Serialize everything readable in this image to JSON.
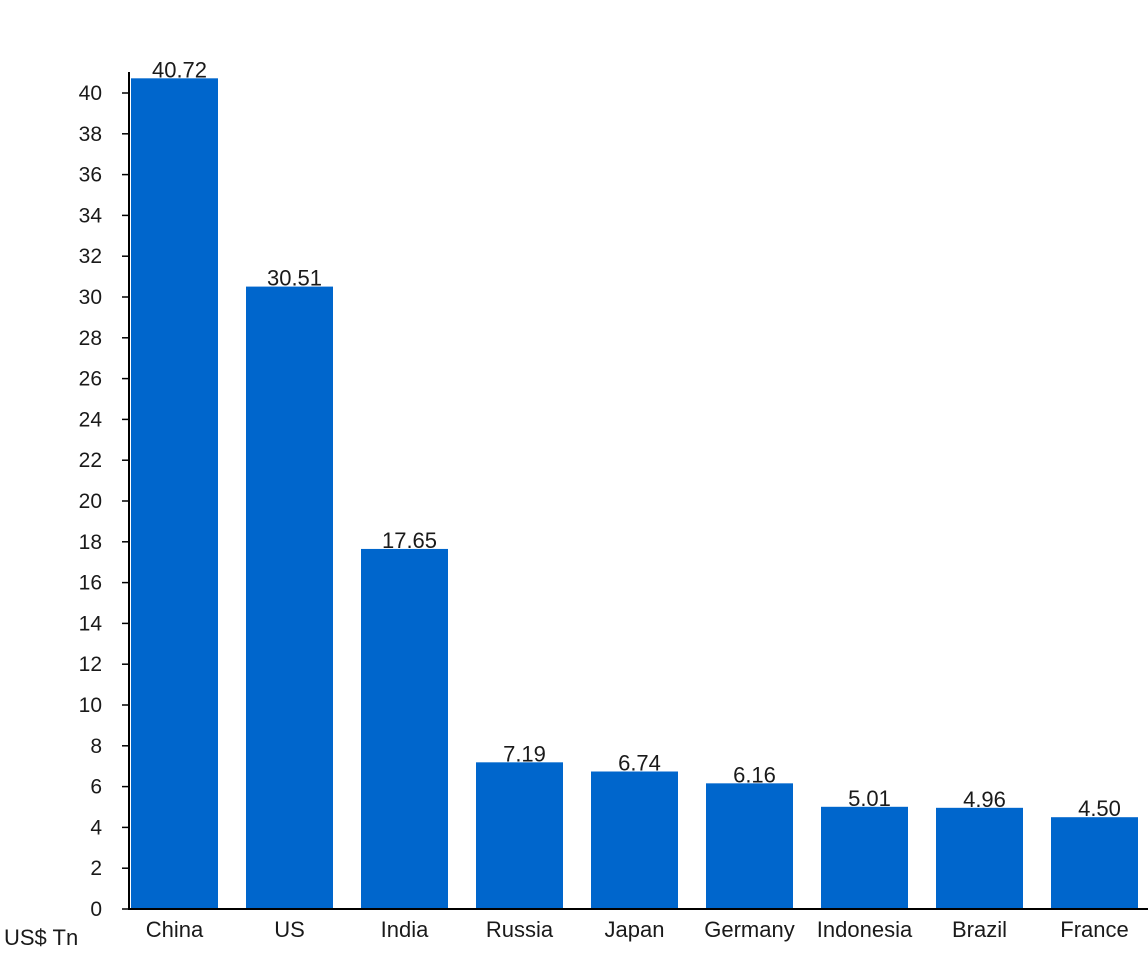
{
  "chart_data": {
    "type": "bar",
    "title": "",
    "xlabel": "",
    "ylabel": "",
    "unit_label": "US$ Tn",
    "categories": [
      "China",
      "US",
      "India",
      "Russia",
      "Japan",
      "Germany",
      "Indonesia",
      "Brazil",
      "France"
    ],
    "values": [
      40.72,
      30.51,
      17.65,
      7.19,
      6.74,
      6.16,
      5.01,
      4.96,
      4.5
    ],
    "value_labels": [
      "40.72",
      "30.51",
      "17.65",
      "7.19",
      "6.74",
      "6.16",
      "5.01",
      "4.96",
      "4.50"
    ],
    "ylim": [
      0,
      41
    ],
    "yticks": [
      0,
      2,
      4,
      6,
      8,
      10,
      12,
      14,
      16,
      18,
      20,
      22,
      24,
      26,
      28,
      30,
      32,
      34,
      36,
      38,
      40
    ],
    "grid": false,
    "legend": "none",
    "bar_color": "#0066cc"
  }
}
